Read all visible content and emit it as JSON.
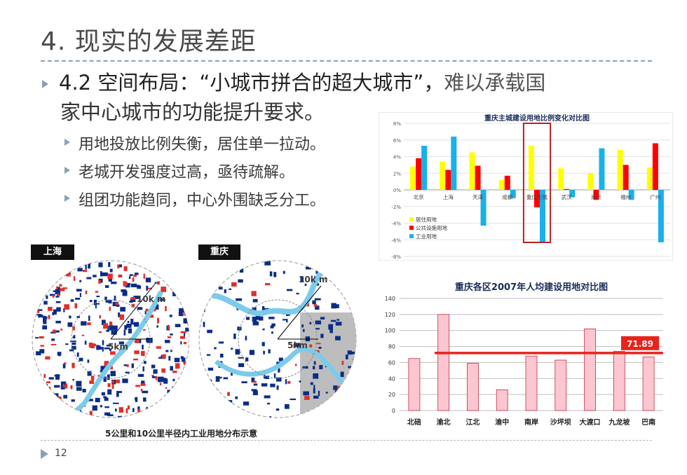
{
  "slide": {
    "title": "4. 现实的发展差距",
    "headline_part1": "4.2 空间布局：“小城市拼合的超大城市”，",
    "headline_part2": "难以承载国",
    "headline_line2": "家中心城市的功能提升要求。",
    "bullets": [
      "用地投放比例失衡，居住单一拉动。",
      "老城开发强度过高，亟待疏解。",
      "组团功能趋同，中心外围缺乏分工。"
    ],
    "page_number": "12"
  },
  "maps": {
    "left_label": "上海",
    "right_label": "重庆",
    "left_radius_10": "10k m",
    "left_radius_5": "5km",
    "right_radius_10": "10k m",
    "right_radius_5": "5km",
    "caption": "5公里和10公里半径内工业用地分布示意"
  },
  "chart_data": [
    {
      "type": "bar",
      "title": "重庆主城建设用地比例变化对比图",
      "categories": [
        "北京",
        "上海",
        "天津",
        "成都",
        "重庆主城",
        "武汉",
        "南京",
        "福州",
        "广州"
      ],
      "series": [
        {
          "name": "居住用地",
          "color": "#ffff00",
          "values": [
            2.8,
            3.4,
            4.5,
            1.2,
            5.3,
            2.6,
            2.0,
            4.8,
            2.7
          ]
        },
        {
          "name": "公共设施用地",
          "color": "#ff0000",
          "values": [
            3.8,
            2.4,
            2.9,
            1.7,
            -2.1,
            0.1,
            -1.2,
            3.0,
            5.6
          ]
        },
        {
          "name": "工业用地",
          "color": "#1ab0e8",
          "values": [
            5.3,
            6.4,
            -4.3,
            -1.0,
            -6.4,
            -0.9,
            5.0,
            -1.2,
            -6.3
          ]
        }
      ],
      "yticks": [
        "8%",
        "6%",
        "4%",
        "2%",
        "0%",
        "-2%",
        "-4%",
        "-6%",
        "-8%"
      ],
      "ylim": [
        -8,
        8
      ],
      "highlight": "重庆主城",
      "legend": "bottom-left"
    },
    {
      "type": "bar",
      "title": "重庆各区2007年人均建设用地对比图",
      "categories": [
        "北碚",
        "渝北",
        "江北",
        "渝中",
        "南岸",
        "沙坪坝",
        "大渡口",
        "九龙坡",
        "巴南"
      ],
      "values": [
        65,
        120,
        59,
        26,
        68,
        63,
        102,
        74,
        67
      ],
      "yticks": [
        "140",
        "120",
        "100",
        "80",
        "60",
        "40",
        "20",
        "0"
      ],
      "ylim": [
        0,
        140
      ],
      "reference_line": 71.89,
      "reference_label": "71.89",
      "bar_color": "#fbc6d0",
      "bar_border": "#c0304a",
      "line_color": "#e8231c"
    }
  ]
}
